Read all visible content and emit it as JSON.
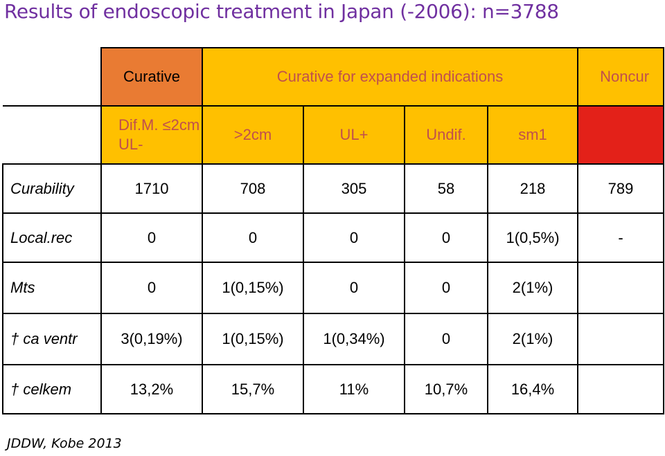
{
  "title": "Results of endoscopic treatment in Japan (-2006): n=3788",
  "header": {
    "curative": "Curative",
    "expanded": "Curative for expanded indications",
    "noncur": "Noncur"
  },
  "subheader": {
    "dif_line1": "Dif.M. ≤2cm",
    "dif_line2": "UL-",
    "gt2cm": ">2cm",
    "ulplus": "UL+",
    "undif": "Undif.",
    "sm1": "sm1"
  },
  "rows": [
    {
      "label": "Curability",
      "values": [
        "1710",
        "708",
        "305",
        "58",
        "218",
        "789"
      ]
    },
    {
      "label": "Local.rec",
      "values": [
        "0",
        "0",
        "0",
        "0",
        "1(0,5%)",
        "-"
      ]
    },
    {
      "label": "Mts",
      "values": [
        "0",
        "1(0,15%)",
        "0",
        "0",
        "2(1%)",
        ""
      ]
    },
    {
      "label": "† ca ventr",
      "values": [
        "3(0,19%)",
        "1(0,15%)",
        "1(0,34%)",
        "0",
        "2(1%)",
        ""
      ]
    },
    {
      "label": "† celkem",
      "values": [
        "13,2%",
        "15,7%",
        "11%",
        "10,7%",
        "16,4%",
        ""
      ]
    }
  ],
  "colors": {
    "curative": "#e97b33",
    "expanded": "#ffc000",
    "noncur": "#e32119",
    "title": "#7030a0",
    "header_text": "#c0504d"
  },
  "footer": "JDDW, Kobe 2013"
}
